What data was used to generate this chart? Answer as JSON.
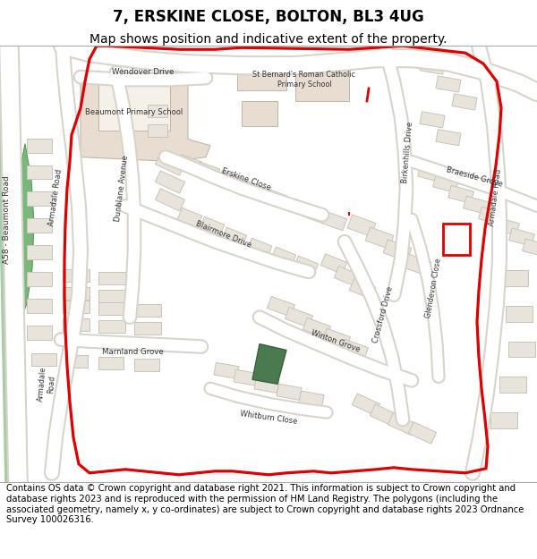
{
  "title": "7, ERSKINE CLOSE, BOLTON, BL3 4UG",
  "subtitle": "Map shows position and indicative extent of the property.",
  "footer": "Contains OS data © Crown copyright and database right 2021. This information is subject to Crown copyright and database rights 2023 and is reproduced with the permission of HM Land Registry. The polygons (including the associated geometry, namely x, y co-ordinates) are subject to Crown copyright and database rights 2023 Ordnance Survey 100026316.",
  "map_bg": "#f2efe8",
  "road_color": "#ffffff",
  "road_outline": "#d8d4cc",
  "building_color": "#e8e4dc",
  "building_outline": "#c8c4bc",
  "school_color": "#e8ddd0",
  "green_strip": "#7ab87a",
  "green_road_edge": "#a8cca8",
  "red_color": "#dd0000",
  "plot_color": "#4a7a50",
  "title_fontsize": 12,
  "subtitle_fontsize": 10,
  "footer_fontsize": 7.2,
  "label_fontsize": 6.5,
  "label_small": 5.8
}
